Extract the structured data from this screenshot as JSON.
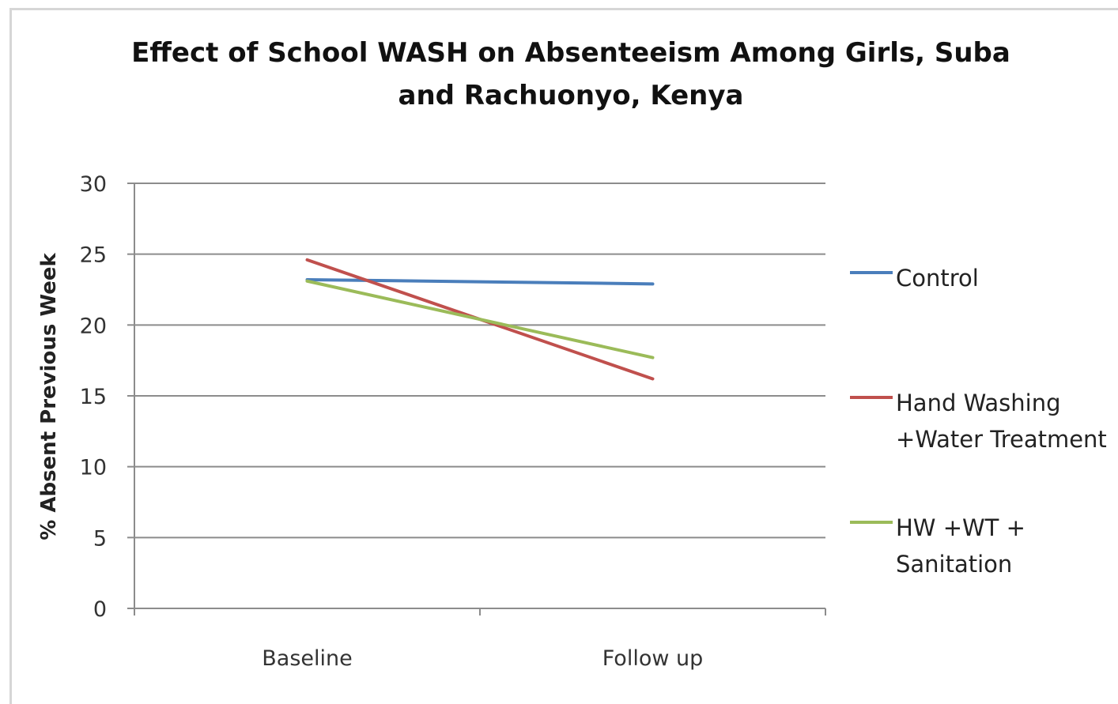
{
  "chart_data": {
    "type": "line",
    "title_lines": [
      "Effect of School WASH on Absenteeism Among Girls, Suba",
      "and Rachuonyo, Kenya"
    ],
    "ylabel": "% Absent Previous Week",
    "xlabel": "",
    "categories": [
      "Baseline",
      "Follow up"
    ],
    "ylim": [
      0,
      30
    ],
    "yticks": [
      0,
      5,
      10,
      15,
      20,
      25,
      30
    ],
    "grid": true,
    "legend_position": "right",
    "series": [
      {
        "name": "Control",
        "legend_lines": [
          "Control"
        ],
        "color": "#4a7ebb",
        "values": [
          23.2,
          22.9
        ]
      },
      {
        "name": "Hand Washing +Water Treatment",
        "legend_lines": [
          "Hand Washing",
          "+Water Treatment"
        ],
        "color": "#c0504d",
        "values": [
          24.6,
          16.2
        ]
      },
      {
        "name": "HW +WT + Sanitation",
        "legend_lines": [
          "HW +WT +",
          "Sanitation"
        ],
        "color": "#9bbb59",
        "values": [
          23.1,
          17.7
        ]
      }
    ]
  }
}
